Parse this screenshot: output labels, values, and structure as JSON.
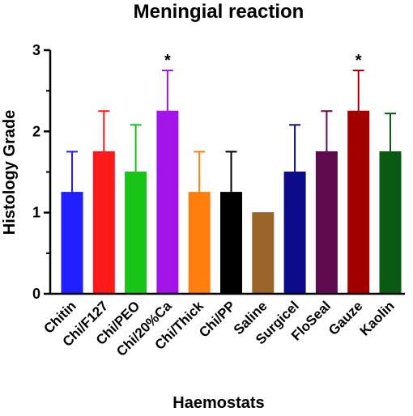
{
  "chart_data": {
    "type": "bar",
    "title": "Meningial reaction",
    "xlabel": "Haemostats",
    "ylabel": "Histology Grade",
    "ylim": [
      0,
      3
    ],
    "yticks": [
      "0",
      "1",
      "2",
      "3"
    ],
    "categories": [
      "Chitin",
      "Chi/F127",
      "Chi/PEO",
      "Chi/20%Ca",
      "Chi/Thick",
      "Chi/PP",
      "Saline",
      "Surgicel",
      "FloSeal",
      "Gauze",
      "Kaolin"
    ],
    "values": [
      1.25,
      1.75,
      1.5,
      2.25,
      1.25,
      1.25,
      1.0,
      1.5,
      1.75,
      2.25,
      1.75
    ],
    "error_upper": [
      0.5,
      0.5,
      0.58,
      0.5,
      0.5,
      0.5,
      0,
      0.58,
      0.5,
      0.5,
      0.47
    ],
    "colors": [
      "#1f1fff",
      "#ff1a1a",
      "#19c419",
      "#a214ea",
      "#ff7f0e",
      "#000000",
      "#99652a",
      "#0c0c8a",
      "#5e0a4f",
      "#a30000",
      "#0a5a14"
    ],
    "annotations": [
      "",
      "",
      "",
      "*",
      "",
      "",
      "",
      "",
      "",
      "*",
      ""
    ],
    "grid": false,
    "legend": "none"
  }
}
